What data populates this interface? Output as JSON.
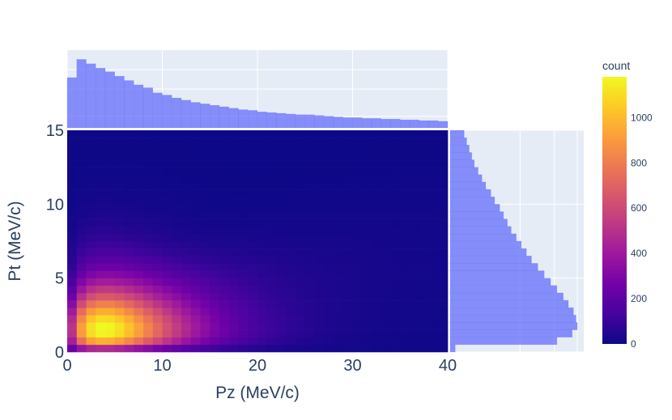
{
  "chart_data": {
    "type": "heatmap",
    "title": "",
    "xlabel": "Pz (MeV/c)",
    "ylabel": "Pt (MeV/c)",
    "x_ticks": [
      0,
      10,
      20,
      30,
      40
    ],
    "y_ticks": [
      0,
      5,
      10,
      15
    ],
    "xlim": [
      0,
      40
    ],
    "ylim": [
      0,
      15
    ],
    "bin_width_x": 1,
    "bin_width_y": 0.5,
    "colorbar": {
      "title": "count",
      "ticks": [
        0,
        200,
        400,
        600,
        800,
        1000
      ],
      "range": [
        0,
        1180
      ],
      "colorscale": [
        "#0d0887",
        "#46039f",
        "#7201a8",
        "#9c179e",
        "#bd3786",
        "#d8576b",
        "#ed7953",
        "#fb9f3a",
        "#fdca26",
        "#f0f921"
      ]
    },
    "marginal_x_histogram": {
      "color": "#636efa",
      "x_bin_edges_start": -1,
      "bin_width": 1,
      "values": [
        0.09,
        0.69,
        0.94,
        0.88,
        0.82,
        0.77,
        0.71,
        0.65,
        0.59,
        0.55,
        0.48,
        0.45,
        0.41,
        0.38,
        0.35,
        0.33,
        0.31,
        0.29,
        0.27,
        0.25,
        0.24,
        0.22,
        0.21,
        0.2,
        0.19,
        0.18,
        0.18,
        0.17,
        0.16,
        0.15,
        0.14,
        0.14,
        0.13,
        0.13,
        0.12,
        0.12,
        0.11,
        0.11,
        0.1,
        0.1,
        0.09,
        0.04
      ]
    },
    "marginal_y_histogram": {
      "color": "#636efa",
      "y_bin_edges_start": 0,
      "bin_width": 0.5,
      "values": [
        0.04,
        0.84,
        0.96,
        1.0,
        0.99,
        0.97,
        0.93,
        0.89,
        0.84,
        0.79,
        0.74,
        0.69,
        0.64,
        0.6,
        0.56,
        0.52,
        0.48,
        0.45,
        0.42,
        0.39,
        0.35,
        0.32,
        0.28,
        0.25,
        0.22,
        0.19,
        0.17,
        0.15,
        0.13,
        0.11,
        0.09
      ]
    },
    "grid": true
  }
}
